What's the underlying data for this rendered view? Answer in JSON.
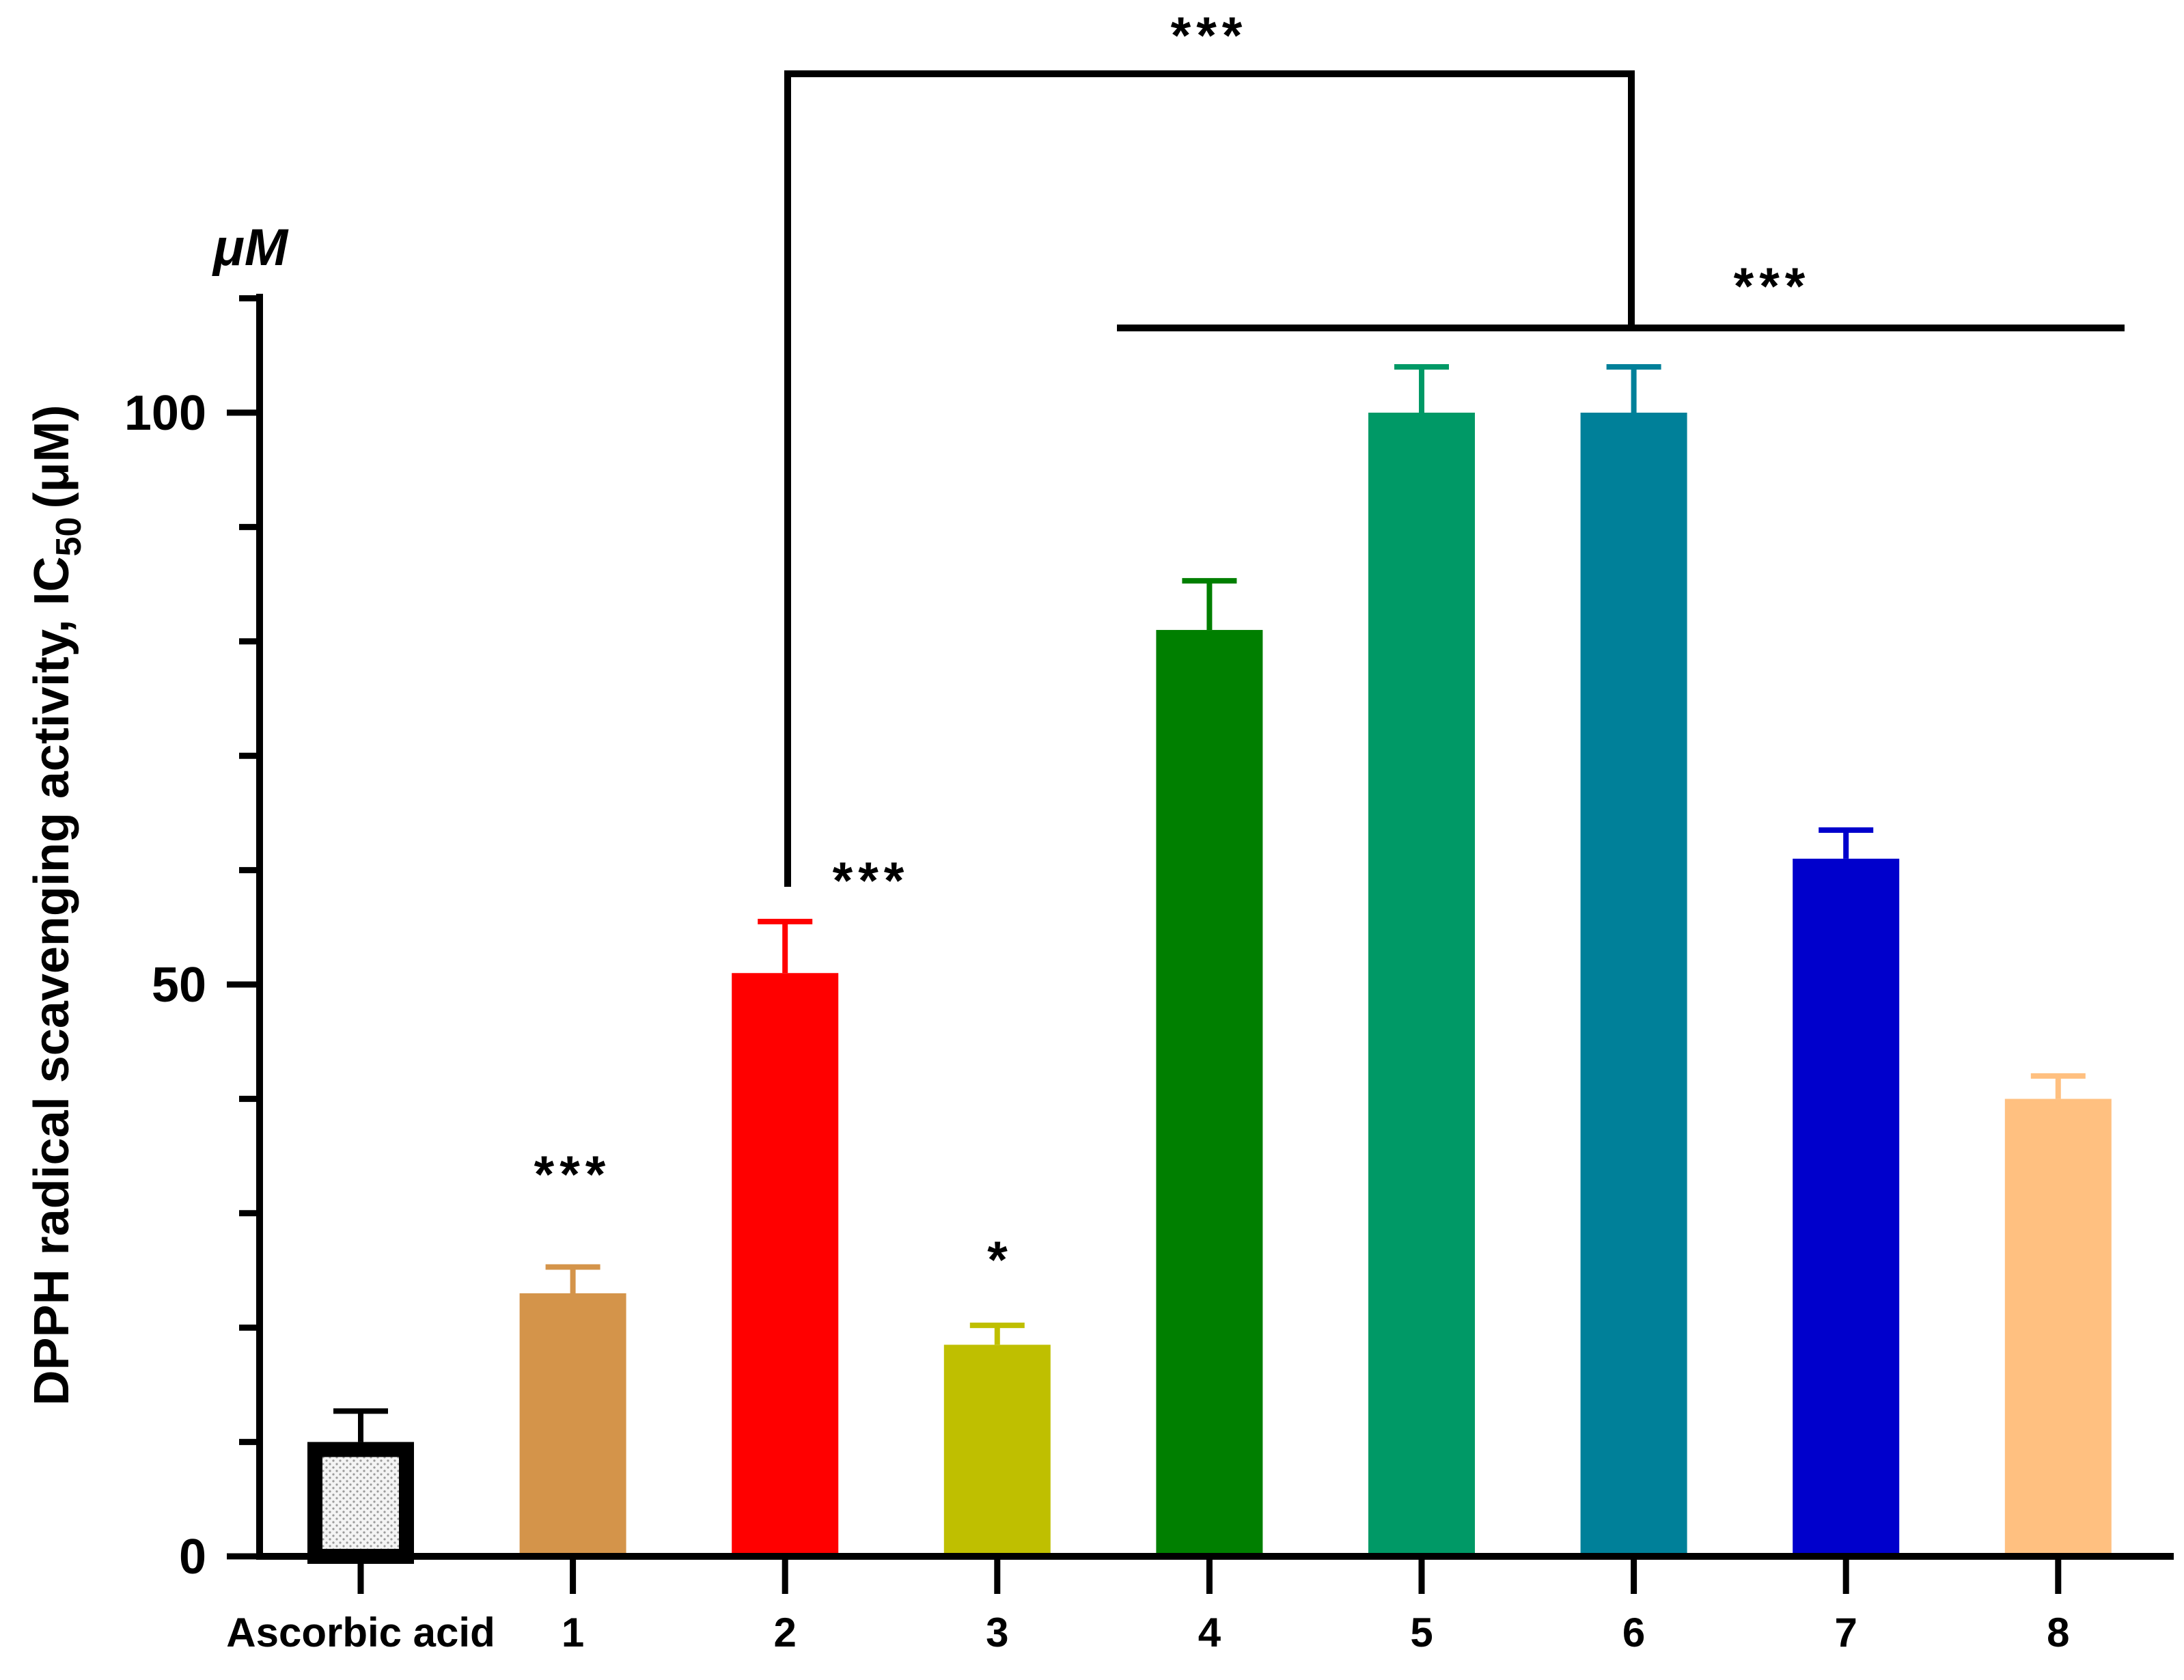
{
  "chart_data": {
    "type": "bar",
    "ylabel": "DPPH radical scavenging activity, IC",
    "ylabel_subscript": "50",
    "ylabel_unit": "(μM)",
    "yunit": "μM",
    "ylim": [
      0,
      110
    ],
    "yticks": [
      0,
      50,
      100
    ],
    "yticks_text": [
      "0",
      "50",
      "100"
    ],
    "categories": [
      "Ascorbic acid",
      "1",
      "2",
      "3",
      "4",
      "5",
      "6",
      "7",
      "8"
    ],
    "values": [
      10,
      23,
      51,
      18.5,
      81,
      100,
      100,
      61,
      40
    ],
    "errors": [
      2.7,
      2.3,
      4.5,
      1.7,
      4.3,
      4,
      4,
      2.5,
      2
    ],
    "colors": [
      "#000000",
      "#D4944A",
      "#FF0000",
      "#BFBF00",
      "#007F00",
      "#009966",
      "#008099",
      "#0000CC",
      "#FFC080"
    ],
    "significance": [
      {
        "category": "1",
        "label": "***"
      },
      {
        "category": "2",
        "label": "***"
      },
      {
        "category": "3",
        "label": "*"
      }
    ],
    "brackets": [
      {
        "from": "2",
        "to": "4–8",
        "label": "***"
      },
      {
        "group": [
          "4",
          "5",
          "6",
          "7",
          "8"
        ],
        "label": "***"
      }
    ]
  }
}
